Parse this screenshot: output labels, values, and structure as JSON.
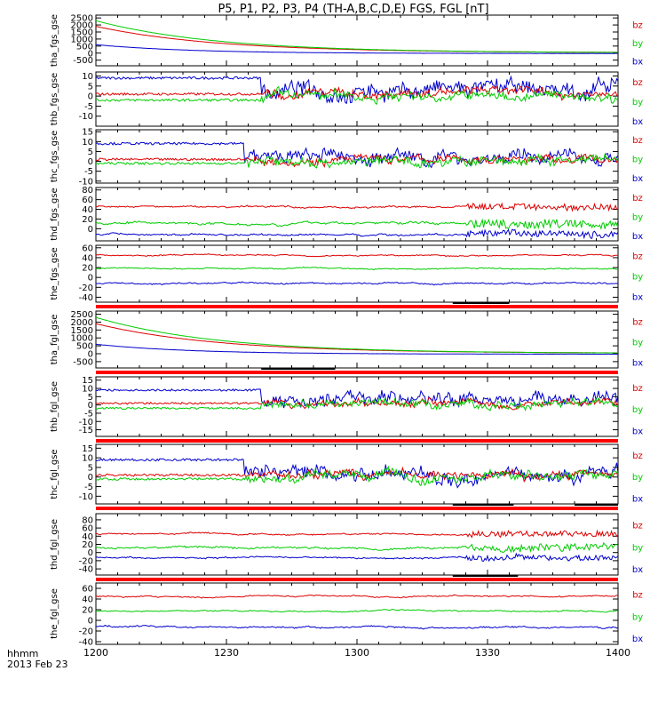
{
  "chart_data": {
    "type": "line",
    "title": "P5, P1, P2, P3, P4 (TH-A,B,C,D,E) FGS, FGL [nT]",
    "x_axis": {
      "tick_labels": [
        "1200",
        "1230",
        "1300",
        "1330",
        "1400"
      ],
      "ticks_min": [
        0,
        30,
        60,
        90,
        120
      ],
      "range_min": [
        0,
        120
      ],
      "label_line1": "hhmm",
      "label_line2": "2013 Feb 23"
    },
    "component_labels": [
      "bz",
      "by",
      "bx"
    ],
    "colors": {
      "bz": "#dd0000",
      "by": "#00cc00",
      "bx": "#0000cc",
      "flag": "#ff0000"
    },
    "panels": [
      {
        "ylabel": "tha_fgs_gse",
        "ylim": [
          -900,
          2700
        ],
        "yticks": [
          -500,
          0,
          500,
          1000,
          1500,
          2000,
          2500
        ],
        "ytick_labels": [
          "-500",
          "0",
          "500",
          "1000",
          "1500",
          "2000",
          "2500"
        ],
        "pattern": "decay",
        "series": [
          {
            "comp": "bz",
            "start": 1900,
            "tau": 28,
            "end": 30,
            "noise": 2
          },
          {
            "comp": "by",
            "start": 2300,
            "tau": 28,
            "end": 20,
            "noise": 2
          },
          {
            "comp": "bx",
            "start": 600,
            "tau": 22,
            "end": -30,
            "noise": 2
          }
        ],
        "flag": false
      },
      {
        "ylabel": "thb_fgs_gse",
        "ylim": [
          -15,
          12
        ],
        "yticks": [
          -10,
          -5,
          0,
          5,
          10
        ],
        "ytick_labels": [
          "-10",
          "-5",
          "0",
          "5",
          "10"
        ],
        "pattern": "turb",
        "turb_start_min": 38,
        "series": [
          {
            "comp": "bx",
            "quiet": 9,
            "active": 3,
            "amp": 6
          },
          {
            "comp": "bz",
            "quiet": 1,
            "active": 1.5,
            "amp": 3
          },
          {
            "comp": "by",
            "quiet": -2,
            "active": 0,
            "amp": 3.5
          }
        ],
        "flag": false
      },
      {
        "ylabel": "thc_fgs_gse",
        "ylim": [
          -11,
          16
        ],
        "yticks": [
          -10,
          -5,
          0,
          5,
          10,
          15
        ],
        "ytick_labels": [
          "-10",
          "-5",
          "0",
          "5",
          "10",
          "15"
        ],
        "pattern": "turb",
        "turb_start_min": 34,
        "series": [
          {
            "comp": "bx",
            "quiet": 9,
            "active": 2,
            "amp": 5
          },
          {
            "comp": "bz",
            "quiet": 1,
            "active": 1,
            "amp": 3
          },
          {
            "comp": "by",
            "quiet": -1,
            "active": 0,
            "amp": 3.5
          }
        ],
        "flag": false
      },
      {
        "ylabel": "thd_fgs_gse",
        "ylim": [
          -25,
          85
        ],
        "yticks": [
          0,
          20,
          40,
          60,
          80
        ],
        "ytick_labels": [
          "0",
          "20",
          "40",
          "60",
          "80"
        ],
        "pattern": "steady",
        "disturb_start_min": 85,
        "series": [
          {
            "comp": "bz",
            "level": 45,
            "amp": 6
          },
          {
            "comp": "by",
            "level": 12,
            "amp": 8
          },
          {
            "comp": "bx",
            "level": -12,
            "amp": 6
          }
        ],
        "flag": false
      },
      {
        "ylabel": "the_fgs_gse",
        "ylim": [
          -50,
          65
        ],
        "yticks": [
          -40,
          -20,
          0,
          20,
          40,
          60
        ],
        "ytick_labels": [
          "-40",
          "-20",
          "0",
          "20",
          "40",
          "60"
        ],
        "pattern": "steady",
        "disturb_start_min": 200,
        "series": [
          {
            "comp": "bz",
            "level": 45,
            "amp": 4
          },
          {
            "comp": "by",
            "level": 18,
            "amp": 4
          },
          {
            "comp": "bx",
            "level": -12,
            "amp": 5
          }
        ],
        "flag": true,
        "flag_marks_min": [
          [
            82,
            95
          ]
        ]
      },
      {
        "ylabel": "tha_fgl_gse",
        "ylim": [
          -900,
          2700
        ],
        "yticks": [
          -500,
          0,
          500,
          1000,
          1500,
          2000,
          2500
        ],
        "ytick_labels": [
          "-500",
          "0",
          "500",
          "1000",
          "1500",
          "2000",
          "2500"
        ],
        "pattern": "decay",
        "series": [
          {
            "comp": "bz",
            "start": 1900,
            "tau": 28,
            "end": 30,
            "noise": 2
          },
          {
            "comp": "by",
            "start": 2300,
            "tau": 28,
            "end": 20,
            "noise": 2
          },
          {
            "comp": "bx",
            "start": 600,
            "tau": 22,
            "end": -30,
            "noise": 2
          }
        ],
        "flag": true,
        "flag_marks_min": [
          [
            38,
            55
          ]
        ]
      },
      {
        "ylabel": "thb_fgl_gse",
        "ylim": [
          -19,
          17
        ],
        "yticks": [
          -15,
          -10,
          -5,
          0,
          5,
          10,
          15
        ],
        "ytick_labels": [
          "-15",
          "-10",
          "-5",
          "0",
          "5",
          "10",
          "15"
        ],
        "pattern": "turb",
        "turb_start_min": 38,
        "series": [
          {
            "comp": "bx",
            "quiet": 9,
            "active": 3,
            "amp": 6
          },
          {
            "comp": "bz",
            "quiet": 1,
            "active": 1.5,
            "amp": 3
          },
          {
            "comp": "by",
            "quiet": -2,
            "active": 0,
            "amp": 3.5
          }
        ],
        "flag": true,
        "flag_marks_min": []
      },
      {
        "ylabel": "thc_fgl_gse",
        "ylim": [
          -14,
          17
        ],
        "yticks": [
          -10,
          -5,
          0,
          5,
          10,
          15
        ],
        "ytick_labels": [
          "-10",
          "-5",
          "0",
          "5",
          "10",
          "15"
        ],
        "pattern": "turb",
        "turb_start_min": 34,
        "series": [
          {
            "comp": "bx",
            "quiet": 9,
            "active": 2,
            "amp": 5
          },
          {
            "comp": "bz",
            "quiet": 1,
            "active": 1,
            "amp": 3
          },
          {
            "comp": "by",
            "quiet": -1,
            "active": 0,
            "amp": 3.5
          }
        ],
        "flag": true,
        "flag_marks_min": [
          [
            82,
            96
          ],
          [
            110,
            120
          ]
        ]
      },
      {
        "ylabel": "thd_fgl_gse",
        "ylim": [
          -55,
          95
        ],
        "yticks": [
          -40,
          -20,
          0,
          20,
          40,
          60,
          80
        ],
        "ytick_labels": [
          "-40",
          "-20",
          "0",
          "20",
          "40",
          "60",
          "80"
        ],
        "pattern": "steady",
        "disturb_start_min": 85,
        "series": [
          {
            "comp": "bz",
            "level": 45,
            "amp": 6
          },
          {
            "comp": "by",
            "level": 12,
            "amp": 8
          },
          {
            "comp": "bx",
            "level": -12,
            "amp": 6
          }
        ],
        "flag": true,
        "flag_marks_min": [
          [
            82,
            97
          ]
        ]
      },
      {
        "ylabel": "the_fgl_gse",
        "ylim": [
          -45,
          70
        ],
        "yticks": [
          -40,
          -20,
          0,
          20,
          40,
          60
        ],
        "ytick_labels": [
          "-40",
          "-20",
          "0",
          "20",
          "40",
          "60"
        ],
        "pattern": "steady",
        "disturb_start_min": 200,
        "series": [
          {
            "comp": "bz",
            "level": 45,
            "amp": 4
          },
          {
            "comp": "by",
            "level": 18,
            "amp": 4
          },
          {
            "comp": "bx",
            "level": -12,
            "amp": 5
          }
        ],
        "flag": false
      }
    ]
  }
}
